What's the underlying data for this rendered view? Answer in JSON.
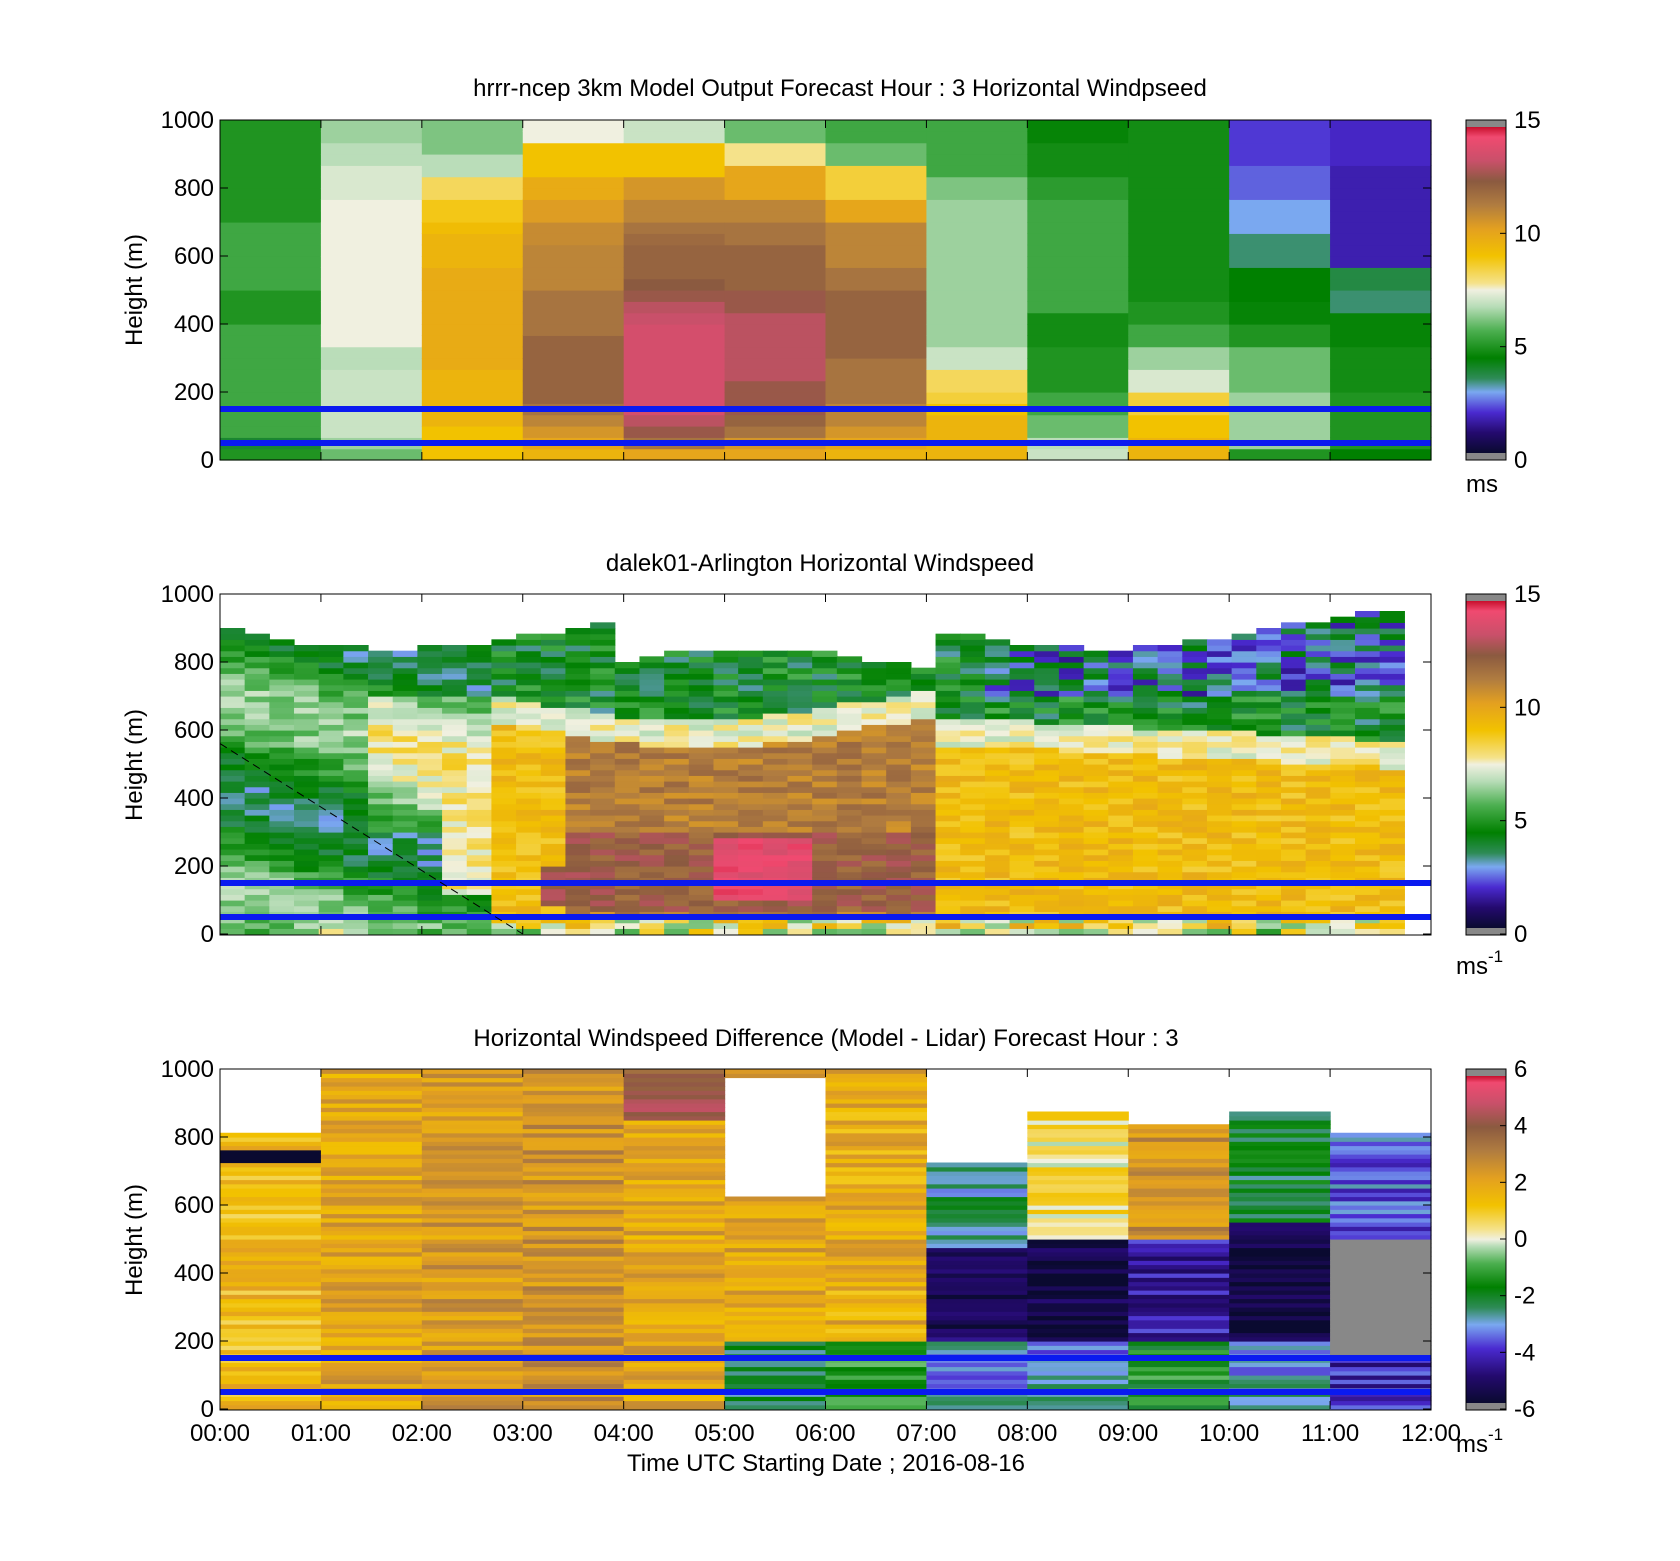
{
  "chart_data": [
    {
      "type": "heatmap",
      "title": "hrrr-ncep 3km Model Output   Forecast Hour : 3 Horizontal Windpseed",
      "xlabel": "",
      "ylabel": "Height (m)",
      "xlim": [
        0,
        12
      ],
      "ylim": [
        0,
        1000
      ],
      "yticks": [
        "0",
        "200",
        "400",
        "600",
        "800",
        "1000"
      ],
      "colorbar": {
        "range": [
          0,
          15
        ],
        "ticks": [
          "0",
          "5",
          "10",
          "15"
        ],
        "unit_label": "ms",
        "unit_sup": ""
      },
      "reference_lines": [
        50,
        150
      ],
      "values_description": "columns = hours 00-11 UTC, rows = height bins from 0 to 1000 m, values in m/s",
      "columns": [
        [
          5,
          4,
          5.5,
          5.5,
          5.5,
          5.5,
          5.5,
          5.5,
          5.5,
          5.5,
          5.5,
          5.5,
          5,
          5,
          5,
          5.5,
          5.5,
          5.5,
          5.5,
          5.5,
          5.5,
          5,
          5,
          5,
          5,
          5,
          5,
          5,
          5,
          5
        ],
        [
          6,
          6.5,
          7,
          7,
          7,
          7,
          7,
          7,
          6.8,
          6.8,
          7.5,
          7.5,
          7.5,
          7.5,
          7.5,
          7.5,
          7.5,
          7.5,
          7.5,
          7.5,
          7.5,
          7.5,
          7.5,
          7.2,
          7.2,
          7.2,
          6.8,
          6.8,
          6.5,
          6.5
        ],
        [
          9,
          9,
          9,
          9.5,
          9.5,
          9.5,
          9.5,
          9.5,
          9.8,
          9.8,
          9.8,
          9.8,
          9.8,
          9.8,
          9.8,
          9.8,
          9.8,
          9.5,
          9.5,
          9.5,
          9.2,
          8.8,
          8.8,
          8.2,
          8.2,
          6.8,
          6.8,
          6.2,
          6.2,
          6.2
        ],
        [
          9.5,
          10,
          10.5,
          11,
          11.5,
          12,
          12,
          12,
          12,
          12,
          12,
          11.5,
          11.5,
          11.5,
          11.5,
          11,
          11,
          11,
          11,
          10.8,
          10.8,
          10.3,
          10.3,
          9.8,
          9.8,
          9,
          9,
          9,
          7.5,
          7.5
        ],
        [
          10,
          11.5,
          12.5,
          13,
          13.5,
          13.5,
          13.5,
          13.5,
          13.5,
          13.5,
          13.5,
          13.5,
          13.2,
          13,
          12.5,
          12.3,
          12,
          12,
          12,
          11.8,
          11.5,
          11,
          11,
          10.5,
          10.5,
          9,
          9,
          9,
          7,
          7
        ],
        [
          10,
          10.5,
          11.5,
          12,
          12.5,
          12.5,
          12.5,
          13,
          13,
          13,
          13,
          13,
          13,
          12.5,
          12.5,
          12,
          12,
          12,
          12,
          11.5,
          11.5,
          11,
          11,
          10,
          10,
          10,
          7.8,
          7.8,
          6,
          6
        ],
        [
          9.5,
          10,
          10.5,
          11,
          11,
          11.5,
          11.5,
          11.5,
          11.5,
          12,
          12,
          12,
          12,
          12,
          12,
          11.5,
          11.5,
          11,
          11,
          11,
          11,
          10,
          10,
          8.5,
          8.5,
          8.5,
          6,
          6,
          5.5,
          5.5
        ],
        [
          9.5,
          9.5,
          9.5,
          9.5,
          9,
          8.5,
          8.2,
          8.2,
          7,
          7,
          6.5,
          6.5,
          6.5,
          6.5,
          6.5,
          6.5,
          6.5,
          6.5,
          6.5,
          6.5,
          6.5,
          6.5,
          6.5,
          6.2,
          6.2,
          5.5,
          5.5,
          5.5,
          5.5,
          5.5
        ],
        [
          7,
          6.8,
          6,
          6,
          5.5,
          5.5,
          5,
          5,
          5,
          5,
          4.8,
          4.8,
          4.8,
          5.5,
          5.5,
          5.5,
          5.5,
          5.5,
          5.5,
          5.5,
          5.5,
          5.5,
          5.5,
          5.2,
          5.2,
          4.8,
          4.8,
          4.8,
          4.6,
          4.6
        ],
        [
          9.5,
          9.5,
          9,
          9,
          8.5,
          8.5,
          7.2,
          7.2,
          6.5,
          6.5,
          5.5,
          5.5,
          5,
          5,
          4.8,
          4.8,
          4.8,
          4.8,
          4.8,
          4.8,
          4.8,
          4.8,
          4.8,
          4.8,
          4.8,
          4.8,
          4.8,
          4.8,
          4.8,
          4.8
        ],
        [
          5,
          6.5,
          6.5,
          6.5,
          6.5,
          6.5,
          6,
          6,
          6,
          6,
          5,
          5,
          4.6,
          4.6,
          4.5,
          4.5,
          4.5,
          3.5,
          3.5,
          3.5,
          3,
          3,
          3,
          2.5,
          2.5,
          2.5,
          2.2,
          2.2,
          2.2,
          2.2
        ],
        [
          4.5,
          5,
          5,
          5,
          5,
          5,
          4.8,
          4.8,
          4.8,
          4.8,
          4.6,
          4.6,
          4.6,
          3.5,
          3.5,
          3.8,
          3.8,
          1.8,
          1.8,
          1.8,
          1.8,
          1.8,
          1.8,
          1.8,
          1.8,
          1.8,
          2,
          2,
          2,
          2
        ]
      ]
    },
    {
      "type": "heatmap",
      "title": "dalek01-Arlington  Horizontal Windspeed",
      "xlabel": "",
      "ylabel": "Height (m)",
      "xlim": [
        0,
        12
      ],
      "ylim": [
        0,
        1000
      ],
      "yticks": [
        "0",
        "200",
        "400",
        "600",
        "800",
        "1000"
      ],
      "colorbar": {
        "range": [
          0,
          15
        ],
        "ticks": [
          "0",
          "5",
          "10",
          "15"
        ],
        "unit_label": "ms",
        "unit_sup": "-1"
      },
      "reference_lines": [
        50,
        150
      ],
      "boundary_line": [
        [
          0,
          560
        ],
        [
          3,
          0
        ]
      ],
      "values_description": "10-min lidar profiles 00:00-11:50 UTC, wind speed in m/s (approximate)"
    },
    {
      "type": "heatmap",
      "title": "Horizontal Windspeed Difference (Model - Lidar) Forecast Hour : 3",
      "xlabel": "Time UTC  Starting Date ; 2016-08-16",
      "ylabel": "Height (m)",
      "xlim": [
        0,
        12
      ],
      "ylim": [
        0,
        1000
      ],
      "xticks": [
        "00:00",
        "01:00",
        "02:00",
        "03:00",
        "04:00",
        "05:00",
        "06:00",
        "07:00",
        "08:00",
        "09:00",
        "10:00",
        "11:00",
        "12:00"
      ],
      "yticks": [
        "0",
        "200",
        "400",
        "600",
        "800",
        "1000"
      ],
      "colorbar": {
        "range": [
          -6,
          6
        ],
        "ticks": [
          "-6",
          "-4",
          "-2",
          "0",
          "2",
          "4",
          "6"
        ],
        "unit_label": "ms",
        "unit_sup": "-1"
      },
      "reference_lines": [
        50,
        150
      ],
      "column_tops": [
        810,
        1000,
        1000,
        1000,
        1000,
        1000,
        1000,
        720,
        870,
        840,
        880,
        810
      ],
      "values_description": "difference in m/s per hour column (approximate means by height band)"
    }
  ]
}
